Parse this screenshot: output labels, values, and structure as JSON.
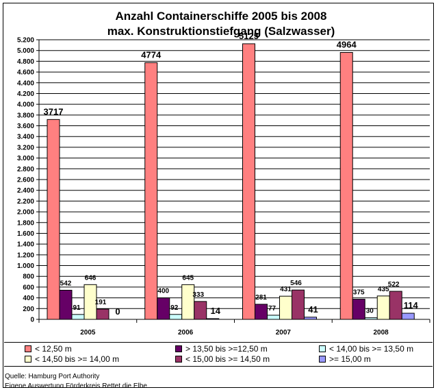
{
  "chart_data": {
    "type": "bar",
    "title": "Anzahl Containerschiffe 2005 bis 2008",
    "subtitle": "max. Konstruktionstiefgang (Salzwasser)",
    "categories": [
      "2005",
      "2006",
      "2007",
      "2008"
    ],
    "ylim": [
      0,
      5200
    ],
    "yticks": [
      0,
      200,
      400,
      600,
      800,
      1000,
      1200,
      1400,
      1600,
      1800,
      2000,
      2200,
      2400,
      2600,
      2800,
      3000,
      3200,
      3400,
      3600,
      3800,
      4000,
      4200,
      4400,
      4600,
      4800,
      5000,
      5200
    ],
    "ytick_labels": [
      "0",
      "200",
      "400",
      "600",
      "800",
      "1.000",
      "1.200",
      "1.400",
      "1.600",
      "1.800",
      "2.000",
      "2.200",
      "2.400",
      "2.600",
      "2.800",
      "3.000",
      "3.200",
      "3.400",
      "3.600",
      "3.800",
      "4.000",
      "4.200",
      "4.400",
      "4.600",
      "4.800",
      "5.000",
      "5.200"
    ],
    "grid": true,
    "legend_position": "bottom",
    "series": [
      {
        "name": "< 12,50 m",
        "color": "#FF8080",
        "values": [
          3717,
          4774,
          5125,
          4964
        ]
      },
      {
        "name": "> 13,50 bis >=12,50 m",
        "color": "#660066",
        "values": [
          542,
          400,
          281,
          375
        ]
      },
      {
        "name": "< 14,00 bis >= 13,50 m",
        "color": "#CCFFFF",
        "values": [
          91,
          92,
          77,
          30
        ]
      },
      {
        "name": "< 14,50 bis >= 14,00 m",
        "color": "#FFFFCC",
        "values": [
          646,
          645,
          431,
          435
        ]
      },
      {
        "name": "< 15,00 bis >= 14,50 m",
        "color": "#993366",
        "values": [
          191,
          333,
          546,
          522
        ]
      },
      {
        "name": ">= 15,00 m",
        "color": "#9999FF",
        "values": [
          0,
          14,
          41,
          114
        ]
      }
    ]
  },
  "source": {
    "line1": "Quelle: Hamburg Port Authority",
    "line2": "Eigene Auswertung Förderkreis Rettet die Elbe"
  }
}
